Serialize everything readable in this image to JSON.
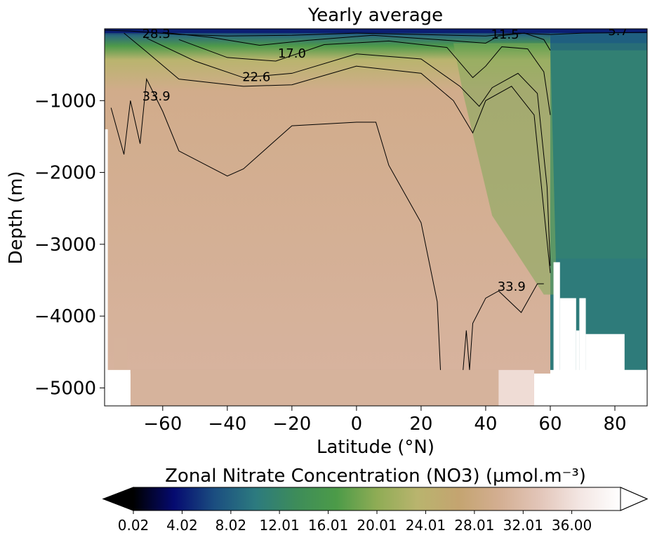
{
  "chart_data": {
    "type": "heatmap",
    "title": "Yearly average",
    "xlabel": "Latitude (°N)",
    "ylabel": "Depth (m)",
    "xlim": [
      -78,
      90
    ],
    "ylim": [
      -5250,
      0
    ],
    "x_ticks": [
      -60,
      -40,
      -20,
      0,
      20,
      40,
      60,
      80
    ],
    "x_tick_labels": [
      "−60",
      "−40",
      "−20",
      "0",
      "20",
      "40",
      "60",
      "80"
    ],
    "y_ticks": [
      -1000,
      -2000,
      -3000,
      -4000,
      -5000
    ],
    "y_tick_labels": [
      "−1000",
      "−2000",
      "−3000",
      "−4000",
      "−5000"
    ],
    "colormap": "gist_earth",
    "colorbar": {
      "label": "Zonal Nitrate Concentration (NO3) (µmol.m⁻³)",
      "min": 0.02,
      "max": 40.0,
      "extend": "both",
      "ticks": [
        0.02,
        4.02,
        8.02,
        12.01,
        16.01,
        20.01,
        24.01,
        28.01,
        32.01,
        36.0
      ],
      "tick_labels": [
        "0.02",
        "4.02",
        "8.02",
        "12.01",
        "16.01",
        "20.01",
        "24.01",
        "28.01",
        "32.01",
        "36.00"
      ],
      "stops": [
        "#000000",
        "#050a70",
        "#1b4e80",
        "#2c7a7f",
        "#3d8c5a",
        "#4c9b48",
        "#8fac55",
        "#b9b46e",
        "#c4a470",
        "#d3ae91",
        "#e2c5b8",
        "#f3e6e3",
        "#ffffff"
      ]
    },
    "contour_levels": [
      5.7,
      11.5,
      17.0,
      22.6,
      28.3,
      33.9
    ],
    "contour_labels": [
      {
        "text": "28.3",
        "x": -62,
        "y": -80
      },
      {
        "text": "17.0",
        "x": -20,
        "y": -350
      },
      {
        "text": "22.6",
        "x": -31,
        "y": -680
      },
      {
        "text": "11.5",
        "x": 46,
        "y": -90
      },
      {
        "text": "5.7",
        "x": 81,
        "y": -40
      },
      {
        "text": "33.9",
        "x": -62,
        "y": -950
      },
      {
        "text": "33.9",
        "x": 48,
        "y": -3600
      }
    ],
    "colors": {
      "arctic_deep": "#2e7b7a",
      "arctic_mid": "#3a8966",
      "deep_ocean": "#d6b39c",
      "no_data": "#ffffff"
    }
  }
}
